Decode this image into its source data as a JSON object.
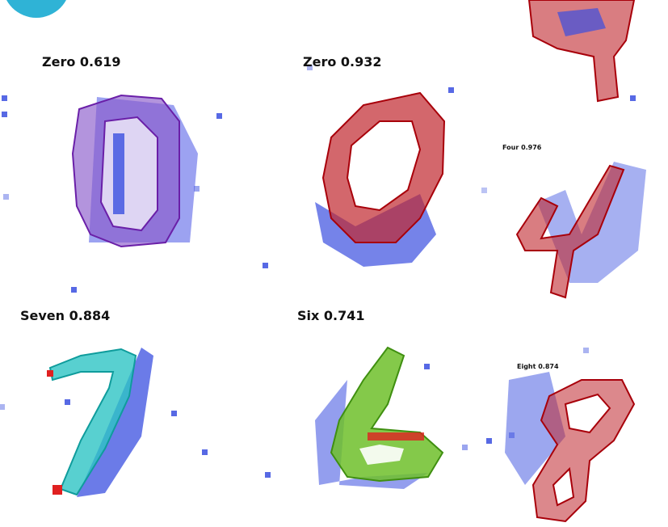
{
  "panels": [
    {
      "label": "Zero 0.619"
    },
    {
      "label": "Zero 0.932"
    },
    {
      "label": "Four 0.976"
    },
    {
      "label": "Seven 0.884"
    },
    {
      "label": "Six 0.741"
    },
    {
      "label": "Eight 0.874"
    }
  ]
}
